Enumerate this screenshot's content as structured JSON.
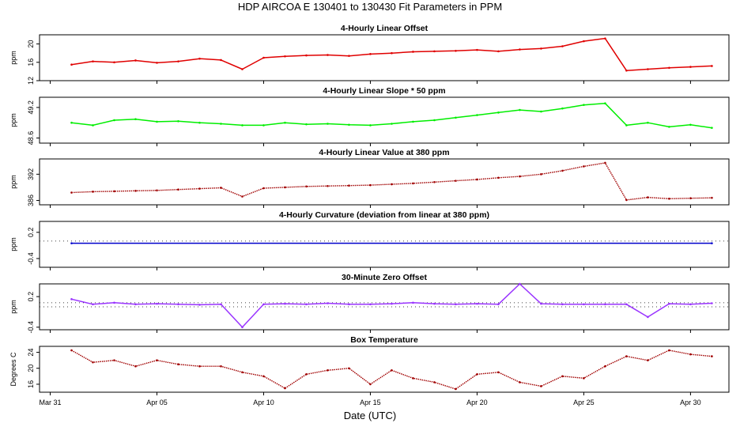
{
  "title": "HDP   AIRCOA E   130401 to 130430   Fit Parameters in PPM",
  "xlabel": "Date (UTC)",
  "chart_data": [
    {
      "type": "line",
      "title": "4-Hourly Linear Offset",
      "ylabel": "ppm",
      "color": "#e00000",
      "style": "line",
      "ylim": [
        12,
        22
      ],
      "yticks": [
        12,
        16,
        20
      ],
      "x": [
        1,
        2,
        3,
        4,
        5,
        6,
        7,
        8,
        9,
        10,
        11,
        12,
        13,
        14,
        15,
        16,
        17,
        18,
        19,
        20,
        21,
        22,
        23,
        24,
        25,
        26,
        27,
        28,
        29,
        30,
        31
      ],
      "y": [
        15.5,
        16.2,
        16.0,
        16.4,
        15.9,
        16.2,
        16.8,
        16.5,
        14.5,
        17.0,
        17.3,
        17.5,
        17.6,
        17.4,
        17.8,
        18.0,
        18.3,
        18.4,
        18.5,
        18.7,
        18.4,
        18.8,
        19.0,
        19.5,
        20.6,
        21.2,
        14.2,
        14.5,
        14.8,
        15.0,
        15.2
      ]
    },
    {
      "type": "line",
      "title": "4-Hourly Linear Slope * 50 ppm",
      "ylabel": "ppm",
      "color": "#00ee00",
      "style": "line",
      "ylim": [
        48.5,
        49.4
      ],
      "yticks": [
        48.6,
        49.2
      ],
      "x": [
        1,
        2,
        3,
        4,
        5,
        6,
        7,
        8,
        9,
        10,
        11,
        12,
        13,
        14,
        15,
        16,
        17,
        18,
        19,
        20,
        21,
        22,
        23,
        24,
        25,
        26,
        27,
        28,
        29,
        30,
        31
      ],
      "y": [
        48.9,
        48.85,
        48.95,
        48.97,
        48.92,
        48.93,
        48.9,
        48.88,
        48.85,
        48.85,
        48.9,
        48.87,
        48.88,
        48.86,
        48.85,
        48.88,
        48.92,
        48.95,
        49.0,
        49.05,
        49.1,
        49.15,
        49.12,
        49.18,
        49.25,
        49.28,
        48.85,
        48.9,
        48.82,
        48.86,
        48.8
      ]
    },
    {
      "type": "line",
      "title": "4-Hourly Linear Value at 380 ppm",
      "ylabel": "ppm",
      "color": "#a00000",
      "style": "dots",
      "ylim": [
        385,
        395.5
      ],
      "yticks": [
        386,
        392
      ],
      "x": [
        1,
        2,
        3,
        4,
        5,
        6,
        7,
        8,
        9,
        10,
        11,
        12,
        13,
        14,
        15,
        16,
        17,
        18,
        19,
        20,
        21,
        22,
        23,
        24,
        25,
        26,
        27,
        28,
        29,
        30,
        31
      ],
      "y": [
        387.8,
        388.0,
        388.1,
        388.2,
        388.3,
        388.5,
        388.7,
        388.9,
        386.9,
        388.8,
        389.0,
        389.2,
        389.3,
        389.4,
        389.5,
        389.7,
        389.9,
        390.2,
        390.5,
        390.8,
        391.2,
        391.5,
        392.0,
        392.8,
        393.8,
        394.6,
        386.1,
        386.7,
        386.4,
        386.5,
        386.6
      ]
    },
    {
      "type": "line",
      "title": "4-Hourly Curvature (deviation from linear at 380 ppm)",
      "ylabel": "ppm",
      "color": "#0000cc",
      "style": "line",
      "ylim": [
        -0.6,
        0.45
      ],
      "yticks": [
        -0.4,
        0.2
      ],
      "reference_line": 0.0,
      "x": [
        1,
        31
      ],
      "y": [
        -0.05,
        -0.05
      ]
    },
    {
      "type": "line",
      "title": "30-Minute Zero Offset",
      "ylabel": "ppm",
      "color": "#9933ff",
      "style": "line",
      "ylim": [
        -0.45,
        0.45
      ],
      "yticks": [
        -0.4,
        0.2
      ],
      "reference_lines": [
        0.0,
        0.08
      ],
      "x": [
        1,
        2,
        3,
        4,
        5,
        6,
        7,
        8,
        9,
        10,
        11,
        12,
        13,
        14,
        15,
        16,
        17,
        18,
        19,
        20,
        21,
        22,
        23,
        24,
        25,
        26,
        27,
        28,
        29,
        30,
        31
      ],
      "y": [
        0.15,
        0.05,
        0.08,
        0.05,
        0.06,
        0.05,
        0.04,
        0.05,
        -0.4,
        0.05,
        0.06,
        0.05,
        0.07,
        0.05,
        0.05,
        0.06,
        0.08,
        0.06,
        0.05,
        0.06,
        0.05,
        0.45,
        0.06,
        0.05,
        0.05,
        0.05,
        0.05,
        -0.2,
        0.06,
        0.05,
        0.07
      ]
    },
    {
      "type": "line",
      "title": "Box Temperature",
      "ylabel": "Degrees C",
      "color": "#a00000",
      "style": "dots",
      "ylim": [
        14,
        25.5
      ],
      "yticks": [
        16,
        20,
        24
      ],
      "x": [
        1,
        2,
        3,
        4,
        5,
        6,
        7,
        8,
        9,
        10,
        11,
        12,
        13,
        14,
        15,
        16,
        17,
        18,
        19,
        20,
        21,
        22,
        23,
        24,
        25,
        26,
        27,
        28,
        29,
        30,
        31
      ],
      "y": [
        24.5,
        21.5,
        22.0,
        20.5,
        22.0,
        21.0,
        20.5,
        20.5,
        19.0,
        18.0,
        15.0,
        18.5,
        19.5,
        20.0,
        16.0,
        19.5,
        17.5,
        16.5,
        14.8,
        18.5,
        19.0,
        16.5,
        15.5,
        18.0,
        17.5,
        20.5,
        23.0,
        22.0,
        24.5,
        23.5,
        23.0
      ]
    }
  ],
  "x_axis": {
    "ticks": [
      {
        "day": 0,
        "label": "Mar 31"
      },
      {
        "day": 5,
        "label": "Apr 05"
      },
      {
        "day": 10,
        "label": "Apr 10"
      },
      {
        "day": 15,
        "label": "Apr 15"
      },
      {
        "day": 20,
        "label": "Apr 20"
      },
      {
        "day": 25,
        "label": "Apr 25"
      },
      {
        "day": 30,
        "label": "Apr 30"
      }
    ],
    "xlim": [
      -0.5,
      31.8
    ]
  }
}
